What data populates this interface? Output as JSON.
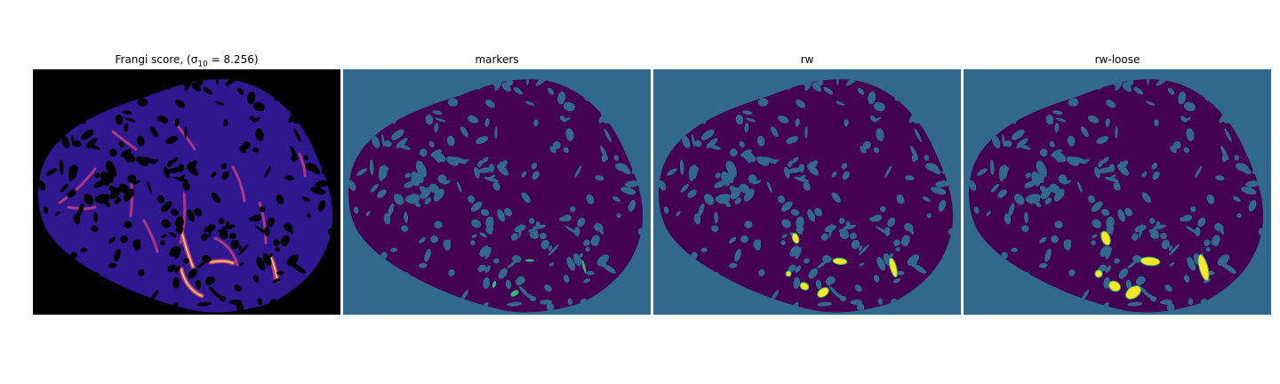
{
  "figure": {
    "panels": [
      {
        "id": "frangi",
        "title": "Frangi score, (σ",
        "title_sub": "10",
        "title_tail": " = 8.256)",
        "kind": "frangi",
        "colors": {
          "background": "#000000",
          "tissue": "#2f1790",
          "vessel": "#c23d80",
          "hot": "#f7c95a"
        }
      },
      {
        "id": "markers",
        "title": "markers",
        "kind": "markers",
        "colors": {
          "background": "#31688e",
          "tissue": "#440154",
          "marker": "#35b779"
        }
      },
      {
        "id": "rw",
        "title": "rw",
        "kind": "rw",
        "colors": {
          "background": "#31688e",
          "tissue": "#440154",
          "segment": "#fde725",
          "edge": "#35b779"
        }
      },
      {
        "id": "rw-loose",
        "title": "rw-loose",
        "kind": "rw",
        "colors": {
          "background": "#31688e",
          "tissue": "#440154",
          "segment": "#fde725",
          "edge": "#35b779"
        }
      }
    ]
  }
}
